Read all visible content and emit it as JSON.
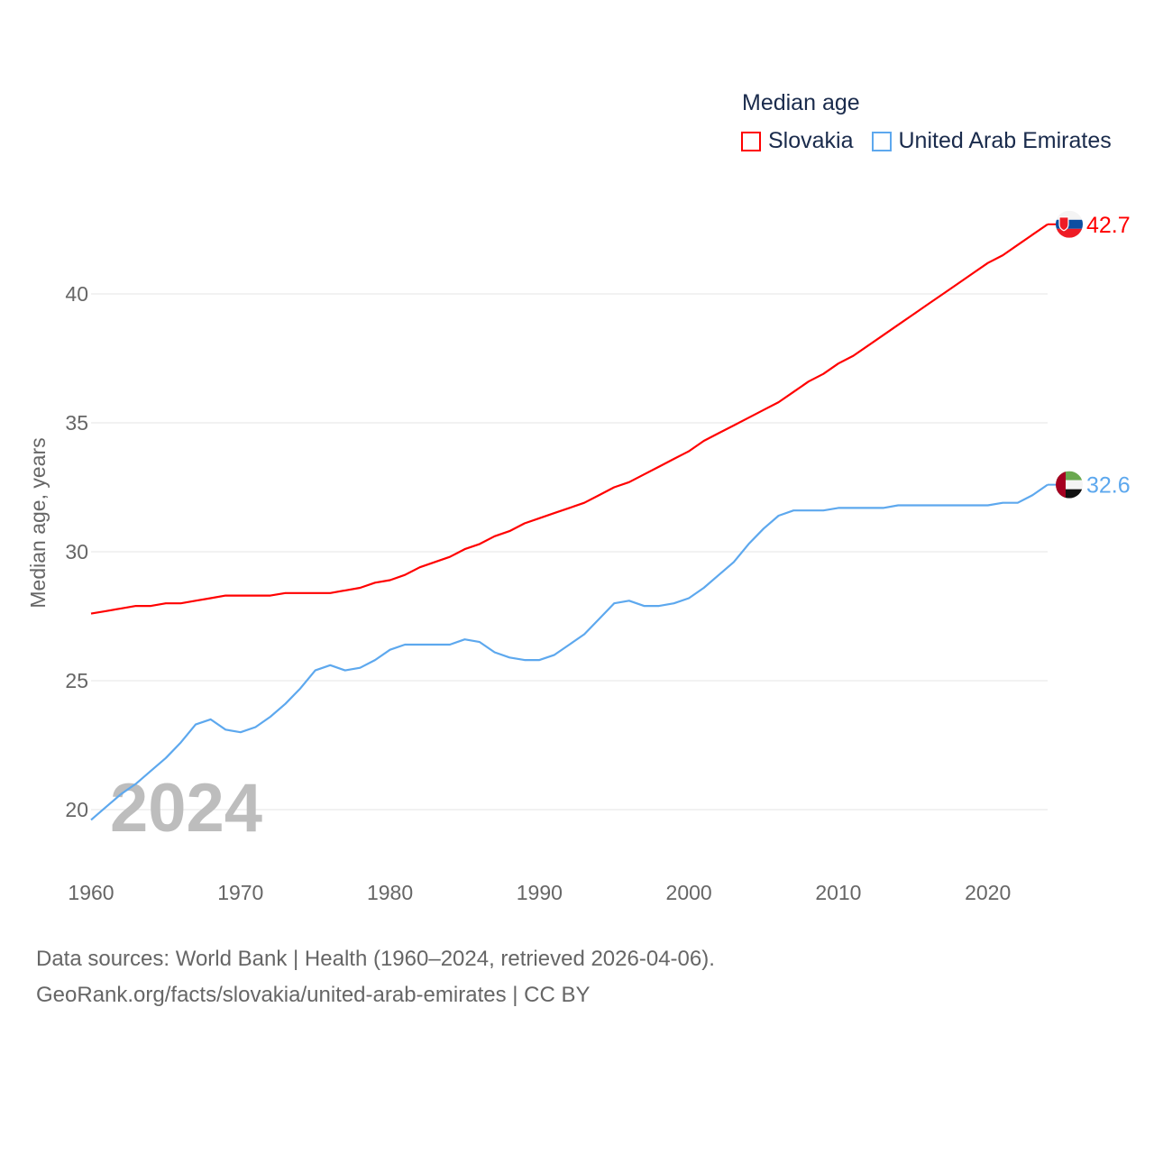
{
  "chart_data": {
    "type": "line",
    "title": "Median age",
    "xlabel": "",
    "ylabel": "Median age, years",
    "xlim": [
      1960,
      2024
    ],
    "ylim": [
      18.5,
      43.5
    ],
    "xticks": [
      1960,
      1970,
      1980,
      1990,
      2000,
      2010,
      2020
    ],
    "yticks": [
      20,
      25,
      30,
      35,
      40
    ],
    "grid": true,
    "legend_position": "top-right",
    "year_watermark": "2024",
    "x": [
      1960,
      1961,
      1962,
      1963,
      1964,
      1965,
      1966,
      1967,
      1968,
      1969,
      1970,
      1971,
      1972,
      1973,
      1974,
      1975,
      1976,
      1977,
      1978,
      1979,
      1980,
      1981,
      1982,
      1983,
      1984,
      1985,
      1986,
      1987,
      1988,
      1989,
      1990,
      1991,
      1992,
      1993,
      1994,
      1995,
      1996,
      1997,
      1998,
      1999,
      2000,
      2001,
      2002,
      2003,
      2004,
      2005,
      2006,
      2007,
      2008,
      2009,
      2010,
      2011,
      2012,
      2013,
      2014,
      2015,
      2016,
      2017,
      2018,
      2019,
      2020,
      2021,
      2022,
      2023,
      2024
    ],
    "series": [
      {
        "name": "Slovakia",
        "color": "#ff0000",
        "end_label": "42.7",
        "values": [
          27.6,
          27.7,
          27.8,
          27.9,
          27.9,
          28.0,
          28.0,
          28.1,
          28.2,
          28.3,
          28.3,
          28.3,
          28.3,
          28.4,
          28.4,
          28.4,
          28.4,
          28.5,
          28.6,
          28.8,
          28.9,
          29.1,
          29.4,
          29.6,
          29.8,
          30.1,
          30.3,
          30.6,
          30.8,
          31.1,
          31.3,
          31.5,
          31.7,
          31.9,
          32.2,
          32.5,
          32.7,
          33.0,
          33.3,
          33.6,
          33.9,
          34.3,
          34.6,
          34.9,
          35.2,
          35.5,
          35.8,
          36.2,
          36.6,
          36.9,
          37.3,
          37.6,
          38.0,
          38.4,
          38.8,
          39.2,
          39.6,
          40.0,
          40.4,
          40.8,
          41.2,
          41.5,
          41.9,
          42.3,
          42.7
        ]
      },
      {
        "name": "United Arab Emirates",
        "color": "#5da8ee",
        "end_label": "32.6",
        "values": [
          19.6,
          20.1,
          20.6,
          21.0,
          21.5,
          22.0,
          22.6,
          23.3,
          23.5,
          23.1,
          23.0,
          23.2,
          23.6,
          24.1,
          24.7,
          25.4,
          25.6,
          25.4,
          25.5,
          25.8,
          26.2,
          26.4,
          26.4,
          26.4,
          26.4,
          26.6,
          26.5,
          26.1,
          25.9,
          25.8,
          25.8,
          26.0,
          26.4,
          26.8,
          27.4,
          28.0,
          28.1,
          27.9,
          27.9,
          28.0,
          28.2,
          28.6,
          29.1,
          29.6,
          30.3,
          30.9,
          31.4,
          31.6,
          31.6,
          31.6,
          31.7,
          31.7,
          31.7,
          31.7,
          31.8,
          31.8,
          31.8,
          31.8,
          31.8,
          31.8,
          31.8,
          31.9,
          31.9,
          32.2,
          32.6
        ]
      }
    ]
  },
  "legend": {
    "title": "Median age",
    "items": [
      "Slovakia",
      "United Arab Emirates"
    ]
  },
  "footer": {
    "line1": "Data sources: World Bank | Health (1960–2024, retrieved 2026-04-06).",
    "line2": "GeoRank.org/facts/slovakia/united-arab-emirates | CC BY"
  }
}
